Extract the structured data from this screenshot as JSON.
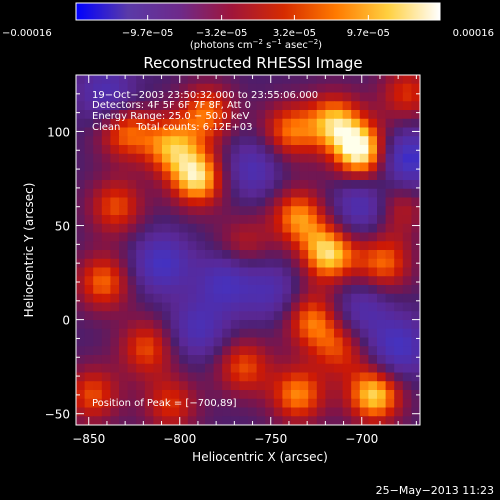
{
  "chart_data": {
    "type": "heatmap",
    "title": "Reconstructed RHESSI Image",
    "xlabel": "Heliocentric X (arcsec)",
    "ylabel": "Heliocentric Y (arcsec)",
    "xlim": [
      -857,
      -668
    ],
    "ylim": [
      -56,
      130
    ],
    "x_ticks": [
      -850,
      -800,
      -750,
      -700
    ],
    "x_tick_labels": [
      "−850",
      "−800",
      "−750",
      "−700"
    ],
    "y_ticks": [
      -50,
      0,
      50,
      100
    ],
    "y_tick_labels": [
      "−50",
      "0",
      "50",
      "100"
    ],
    "colorbar": {
      "min": -0.00016,
      "max": 0.00016,
      "ticks": [
        -0.00016,
        -9.7e-05,
        -3.2e-05,
        3.2e-05,
        9.7e-05,
        0.00016
      ],
      "tick_labels": [
        "−0.00016",
        "−9.7e−05",
        "−3.2e−05",
        "3.2e−05",
        "9.7e−05",
        "0.00016"
      ],
      "unit_main": "(photons cm",
      "unit_exp1": "−2",
      "unit_mid": " s",
      "unit_exp2": "−1",
      "unit_mid2": " asec",
      "unit_exp3": "−2",
      "unit_end": ")",
      "colors": [
        "#0000ff",
        "#5a3aa8",
        "#6e2a8a",
        "#a0153a",
        "#d62b00",
        "#ff7a00",
        "#ffd040",
        "#ffffff"
      ]
    },
    "annotations": [
      "19−Oct−2003 23:50:32.000 to 23:55:06.000",
      "Detectors: 4F 5F 6F 7F 8F, Att 0",
      "Energy Range: 25.0 − 50.0 keV",
      "Clean     Total counts: 6.12E+03"
    ],
    "peak_label": "Position of Peak = [−700,89]",
    "peak": [
      -700,
      89
    ],
    "sources": [
      {
        "x": -700,
        "y": 89,
        "value": 0.00016
      },
      {
        "x": -715,
        "y": 105,
        "value": 0.00012
      },
      {
        "x": -790,
        "y": 75,
        "value": 0.00014
      },
      {
        "x": -805,
        "y": 92,
        "value": 0.00011
      },
      {
        "x": -785,
        "y": 110,
        "value": 0.0001
      },
      {
        "x": -740,
        "y": 100,
        "value": 0.0001
      },
      {
        "x": -718,
        "y": 35,
        "value": 0.00014
      },
      {
        "x": -735,
        "y": 55,
        "value": 0.00011
      },
      {
        "x": -728,
        "y": 0,
        "value": 0.0001
      },
      {
        "x": -712,
        "y": -15,
        "value": 8e-05
      },
      {
        "x": -688,
        "y": 30,
        "value": 0.0001
      },
      {
        "x": -693,
        "y": -40,
        "value": 0.00014
      },
      {
        "x": -735,
        "y": -40,
        "value": 0.00011
      },
      {
        "x": -765,
        "y": -25,
        "value": 9e-05
      },
      {
        "x": -835,
        "y": 60,
        "value": 9e-05
      },
      {
        "x": -842,
        "y": 20,
        "value": 0.0001
      },
      {
        "x": -818,
        "y": -15,
        "value": 9e-05
      },
      {
        "x": -848,
        "y": -40,
        "value": 9e-05
      },
      {
        "x": -805,
        "y": -45,
        "value": 8e-05
      },
      {
        "x": -830,
        "y": 100,
        "value": 0.0001
      },
      {
        "x": -675,
        "y": 120,
        "value": 8e-05
      },
      {
        "x": -680,
        "y": 60,
        "value": 7e-05
      },
      {
        "x": -765,
        "y": 40,
        "value": 6e-05
      },
      {
        "x": -775,
        "y": 20,
        "value": -9e-05
      },
      {
        "x": -810,
        "y": 30,
        "value": -0.0001
      },
      {
        "x": -760,
        "y": 80,
        "value": -8e-05
      },
      {
        "x": -700,
        "y": 60,
        "value": -9e-05
      },
      {
        "x": -675,
        "y": 85,
        "value": -0.00012
      },
      {
        "x": -840,
        "y": 120,
        "value": -8e-05
      },
      {
        "x": -750,
        "y": 15,
        "value": -7e-05
      },
      {
        "x": -790,
        "y": -5,
        "value": -8e-05
      },
      {
        "x": -700,
        "y": 5,
        "value": -7e-05
      },
      {
        "x": -680,
        "y": -15,
        "value": -0.0001
      }
    ]
  },
  "footer": {
    "timestamp": "25−May−2013 11:23"
  }
}
